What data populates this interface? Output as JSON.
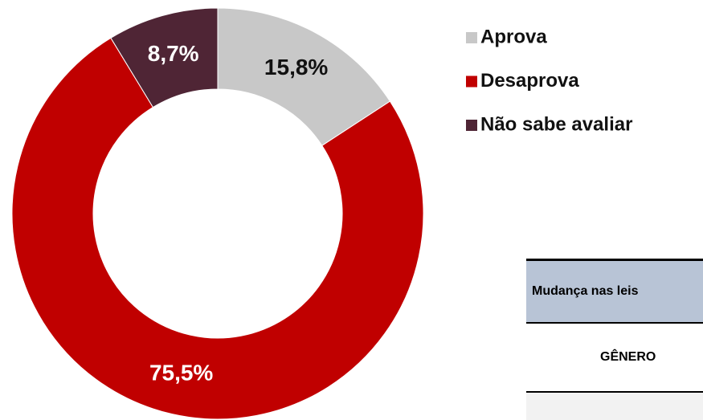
{
  "chart_data": {
    "type": "donut",
    "categories": [
      "Aprova",
      "Desaprova",
      "Não sabe avaliar"
    ],
    "values": [
      15.8,
      75.5,
      8.7
    ],
    "value_labels": [
      "15,8%",
      "75,5%",
      "8,7%"
    ],
    "colors": [
      "#c8c8c8",
      "#c00000",
      "#4f2535"
    ],
    "label_colors": [
      "#111111",
      "#ffffff",
      "#ffffff"
    ],
    "legend": "top-right"
  },
  "table": {
    "header": "Mudança nas leis",
    "rows": [
      [
        "GÊNERO"
      ]
    ]
  }
}
